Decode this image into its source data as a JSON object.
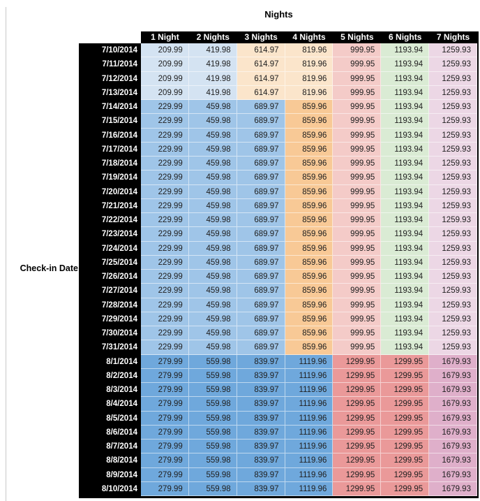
{
  "title": "Nights",
  "row_axis_label": "Check-in Date",
  "chart_data": {
    "type": "table",
    "title": "Nights",
    "row_label": "Check-in Date",
    "columns": [
      "1 Night",
      "2 Nights",
      "3 Nights",
      "4 Nights",
      "5 Nights",
      "6 Nights",
      "7 Nights"
    ],
    "rows": [
      {
        "date": "7/10/2014",
        "group": "g1",
        "values": [
          "209.99",
          "419.98",
          "614.97",
          "819.96",
          "999.95",
          "1193.94",
          "1259.93"
        ]
      },
      {
        "date": "7/11/2014",
        "group": "g1",
        "values": [
          "209.99",
          "419.98",
          "614.97",
          "819.96",
          "999.95",
          "1193.94",
          "1259.93"
        ]
      },
      {
        "date": "7/12/2014",
        "group": "g1",
        "values": [
          "209.99",
          "419.98",
          "614.97",
          "819.96",
          "999.95",
          "1193.94",
          "1259.93"
        ]
      },
      {
        "date": "7/13/2014",
        "group": "g1",
        "values": [
          "209.99",
          "419.98",
          "614.97",
          "819.96",
          "999.95",
          "1193.94",
          "1259.93"
        ]
      },
      {
        "date": "7/14/2014",
        "group": "g2",
        "values": [
          "229.99",
          "459.98",
          "689.97",
          "859.96",
          "999.95",
          "1193.94",
          "1259.93"
        ]
      },
      {
        "date": "7/15/2014",
        "group": "g2",
        "values": [
          "229.99",
          "459.98",
          "689.97",
          "859.96",
          "999.95",
          "1193.94",
          "1259.93"
        ]
      },
      {
        "date": "7/16/2014",
        "group": "g2",
        "values": [
          "229.99",
          "459.98",
          "689.97",
          "859.96",
          "999.95",
          "1193.94",
          "1259.93"
        ]
      },
      {
        "date": "7/17/2014",
        "group": "g2",
        "values": [
          "229.99",
          "459.98",
          "689.97",
          "859.96",
          "999.95",
          "1193.94",
          "1259.93"
        ]
      },
      {
        "date": "7/18/2014",
        "group": "g2",
        "values": [
          "229.99",
          "459.98",
          "689.97",
          "859.96",
          "999.95",
          "1193.94",
          "1259.93"
        ]
      },
      {
        "date": "7/19/2014",
        "group": "g2",
        "values": [
          "229.99",
          "459.98",
          "689.97",
          "859.96",
          "999.95",
          "1193.94",
          "1259.93"
        ]
      },
      {
        "date": "7/20/2014",
        "group": "g2",
        "values": [
          "229.99",
          "459.98",
          "689.97",
          "859.96",
          "999.95",
          "1193.94",
          "1259.93"
        ]
      },
      {
        "date": "7/21/2014",
        "group": "g2",
        "values": [
          "229.99",
          "459.98",
          "689.97",
          "859.96",
          "999.95",
          "1193.94",
          "1259.93"
        ]
      },
      {
        "date": "7/22/2014",
        "group": "g2",
        "values": [
          "229.99",
          "459.98",
          "689.97",
          "859.96",
          "999.95",
          "1193.94",
          "1259.93"
        ]
      },
      {
        "date": "7/23/2014",
        "group": "g2",
        "values": [
          "229.99",
          "459.98",
          "689.97",
          "859.96",
          "999.95",
          "1193.94",
          "1259.93"
        ]
      },
      {
        "date": "7/24/2014",
        "group": "g2",
        "values": [
          "229.99",
          "459.98",
          "689.97",
          "859.96",
          "999.95",
          "1193.94",
          "1259.93"
        ]
      },
      {
        "date": "7/25/2014",
        "group": "g2",
        "values": [
          "229.99",
          "459.98",
          "689.97",
          "859.96",
          "999.95",
          "1193.94",
          "1259.93"
        ]
      },
      {
        "date": "7/26/2014",
        "group": "g2",
        "values": [
          "229.99",
          "459.98",
          "689.97",
          "859.96",
          "999.95",
          "1193.94",
          "1259.93"
        ]
      },
      {
        "date": "7/27/2014",
        "group": "g2",
        "values": [
          "229.99",
          "459.98",
          "689.97",
          "859.96",
          "999.95",
          "1193.94",
          "1259.93"
        ]
      },
      {
        "date": "7/28/2014",
        "group": "g2",
        "values": [
          "229.99",
          "459.98",
          "689.97",
          "859.96",
          "999.95",
          "1193.94",
          "1259.93"
        ]
      },
      {
        "date": "7/29/2014",
        "group": "g2",
        "values": [
          "229.99",
          "459.98",
          "689.97",
          "859.96",
          "999.95",
          "1193.94",
          "1259.93"
        ]
      },
      {
        "date": "7/30/2014",
        "group": "g2",
        "values": [
          "229.99",
          "459.98",
          "689.97",
          "859.96",
          "999.95",
          "1193.94",
          "1259.93"
        ]
      },
      {
        "date": "7/31/2014",
        "group": "g2",
        "values": [
          "229.99",
          "459.98",
          "689.97",
          "859.96",
          "999.95",
          "1193.94",
          "1259.93"
        ]
      },
      {
        "date": "8/1/2014",
        "group": "g3",
        "values": [
          "279.99",
          "559.98",
          "839.97",
          "1119.96",
          "1299.95",
          "1299.95",
          "1679.93"
        ]
      },
      {
        "date": "8/2/2014",
        "group": "g3",
        "values": [
          "279.99",
          "559.98",
          "839.97",
          "1119.96",
          "1299.95",
          "1299.95",
          "1679.93"
        ]
      },
      {
        "date": "8/3/2014",
        "group": "g3",
        "values": [
          "279.99",
          "559.98",
          "839.97",
          "1119.96",
          "1299.95",
          "1299.95",
          "1679.93"
        ]
      },
      {
        "date": "8/4/2014",
        "group": "g3",
        "values": [
          "279.99",
          "559.98",
          "839.97",
          "1119.96",
          "1299.95",
          "1299.95",
          "1679.93"
        ]
      },
      {
        "date": "8/5/2014",
        "group": "g3",
        "values": [
          "279.99",
          "559.98",
          "839.97",
          "1119.96",
          "1299.95",
          "1299.95",
          "1679.93"
        ]
      },
      {
        "date": "8/6/2014",
        "group": "g3",
        "values": [
          "279.99",
          "559.98",
          "839.97",
          "1119.96",
          "1299.95",
          "1299.95",
          "1679.93"
        ]
      },
      {
        "date": "8/7/2014",
        "group": "g3",
        "values": [
          "279.99",
          "559.98",
          "839.97",
          "1119.96",
          "1299.95",
          "1299.95",
          "1679.93"
        ]
      },
      {
        "date": "8/8/2014",
        "group": "g3",
        "values": [
          "279.99",
          "559.98",
          "839.97",
          "1119.96",
          "1299.95",
          "1299.95",
          "1679.93"
        ]
      },
      {
        "date": "8/9/2014",
        "group": "g3",
        "values": [
          "279.99",
          "559.98",
          "839.97",
          "1119.96",
          "1299.95",
          "1299.95",
          "1679.93"
        ]
      },
      {
        "date": "8/10/2014",
        "group": "g3",
        "values": [
          "279.99",
          "559.98",
          "839.97",
          "1119.96",
          "1299.95",
          "1299.95",
          "1679.93"
        ]
      }
    ]
  },
  "colors": {
    "header_bg": "#000000",
    "header_text": "#ffffff",
    "date_bg": "#000000",
    "date_text": "#ffffff",
    "value_text": "#202020",
    "sheet_gridline": "#c9c9c9",
    "groups": {
      "g1": [
        "#D4E3F2",
        "#D4E3F2",
        "#FBE5CB",
        "#FBE5CB",
        "#F4CBC8",
        "#DAEBD4",
        "#ECD7E5"
      ],
      "g2": [
        "#9FC5E8",
        "#9FC5E8",
        "#9FC5E8",
        "#F8C996",
        "#F4CBC8",
        "#DAEBD4",
        "#ECD7E5"
      ],
      "g3": [
        "#6FA8DC",
        "#6FA8DC",
        "#6FA8DC",
        "#6FA8DC",
        "#EA9999",
        "#EA9999",
        "#DFAFCA"
      ]
    }
  }
}
